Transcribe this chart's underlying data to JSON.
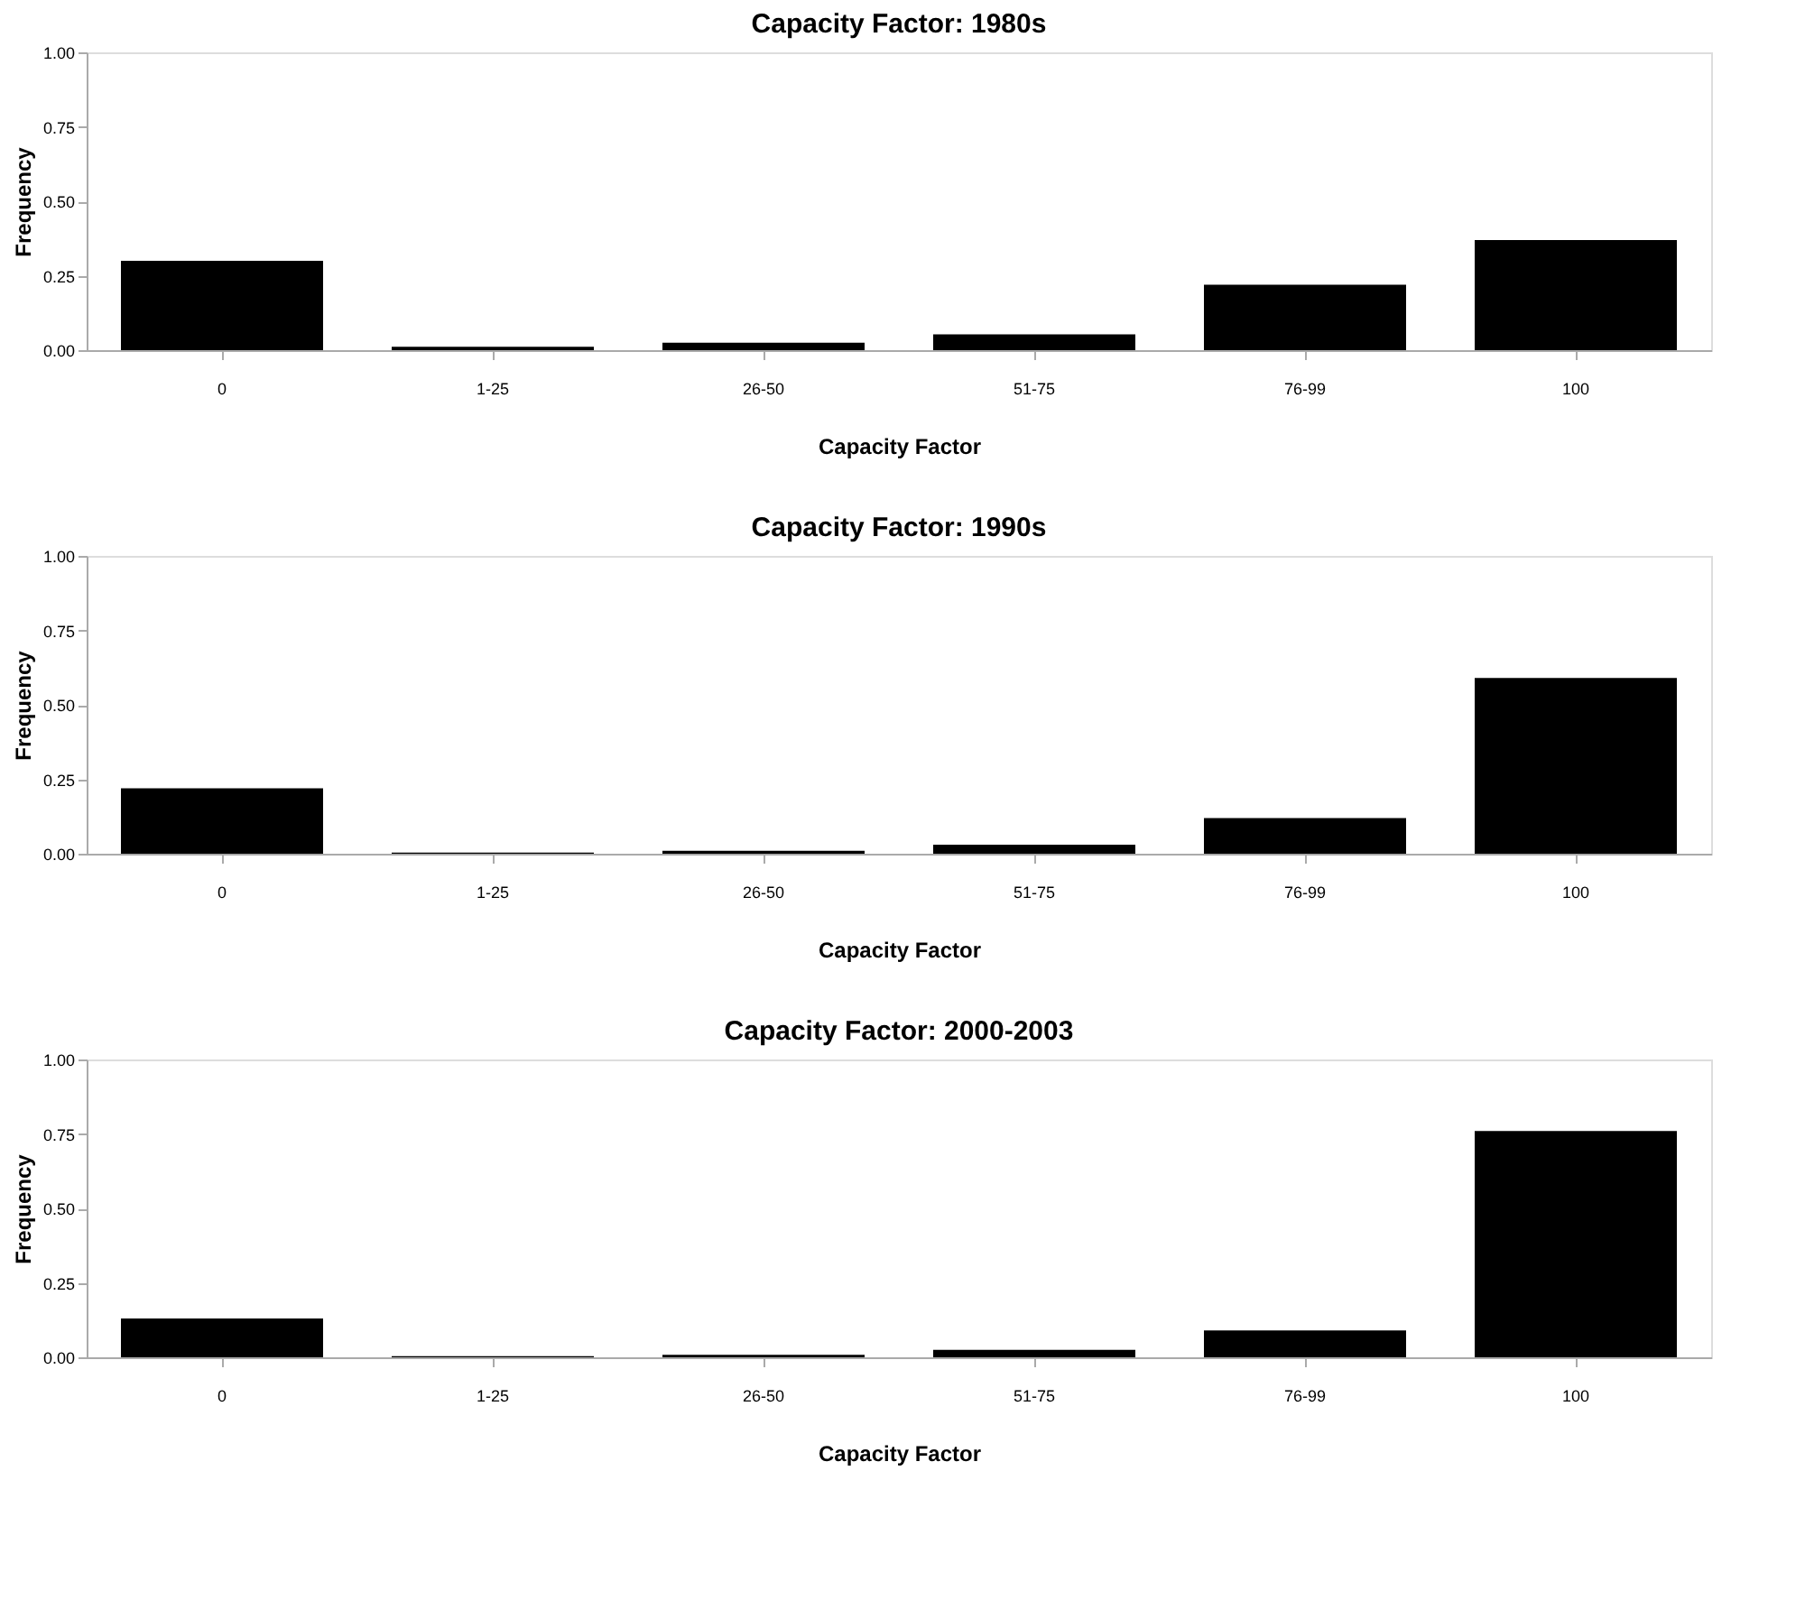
{
  "chart_data": [
    {
      "type": "bar",
      "title": "Capacity Factor: 1980s",
      "xlabel": "Capacity Factor",
      "ylabel": "Frequency",
      "categories": [
        "0",
        "1-25",
        "26-50",
        "51-75",
        "76-99",
        "100"
      ],
      "values": [
        0.3,
        0.011,
        0.025,
        0.053,
        0.22,
        0.37
      ],
      "color": "#000000",
      "ylim": [
        0,
        1
      ],
      "yticks": [
        {
          "value": 0,
          "label": "0.00"
        },
        {
          "value": 0.25,
          "label": "0.25"
        },
        {
          "value": 0.5,
          "label": "0.50"
        },
        {
          "value": 0.75,
          "label": "0.75"
        },
        {
          "value": 1,
          "label": "1.00"
        }
      ],
      "grid": false
    },
    {
      "type": "bar",
      "title": "Capacity Factor: 1990s",
      "xlabel": "Capacity Factor",
      "ylabel": "Frequency",
      "categories": [
        "0",
        "1-25",
        "26-50",
        "51-75",
        "76-99",
        "100"
      ],
      "values": [
        0.22,
        0.004,
        0.01,
        0.03,
        0.12,
        0.59
      ],
      "color": "#000000",
      "ylim": [
        0,
        1
      ],
      "yticks": [
        {
          "value": 0,
          "label": "0.00"
        },
        {
          "value": 0.25,
          "label": "0.25"
        },
        {
          "value": 0.5,
          "label": "0.50"
        },
        {
          "value": 0.75,
          "label": "0.75"
        },
        {
          "value": 1,
          "label": "1.00"
        }
      ],
      "grid": false
    },
    {
      "type": "bar",
      "title": "Capacity Factor: 2000-2003",
      "xlabel": "Capacity Factor",
      "ylabel": "Frequency",
      "categories": [
        "0",
        "1-25",
        "26-50",
        "51-75",
        "76-99",
        "100"
      ],
      "values": [
        0.13,
        0.004,
        0.008,
        0.025,
        0.09,
        0.76
      ],
      "color": "#000000",
      "ylim": [
        0,
        1
      ],
      "yticks": [
        {
          "value": 0,
          "label": "0.00"
        },
        {
          "value": 0.25,
          "label": "0.25"
        },
        {
          "value": 0.5,
          "label": "0.50"
        },
        {
          "value": 0.75,
          "label": "0.75"
        },
        {
          "value": 1,
          "label": "1.00"
        }
      ],
      "grid": false
    }
  ]
}
